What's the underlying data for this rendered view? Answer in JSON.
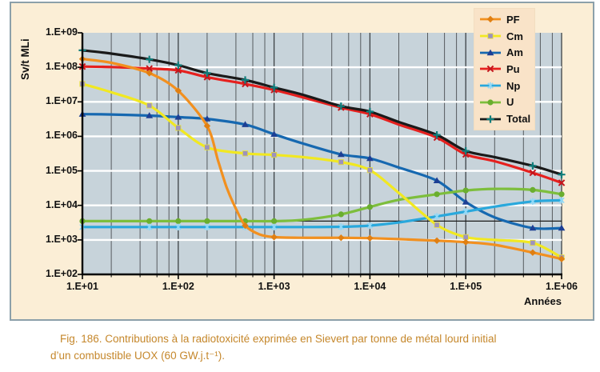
{
  "figure": {
    "caption_line1": "Fig. 186. Contributions à la radiotoxicité exprimée en Sievert par tonne de métal lourd initial",
    "caption_line2": "d’un combustible UOX (60 GW.j.t⁻¹).",
    "caption_color": "#C5872B"
  },
  "theme": {
    "page_bg": "#FFFFFF",
    "figure_bg": "#FBEED6",
    "figure_border": "#8CA0AA",
    "plot_bg": "#C7D3DA",
    "legend_bg": "#F9E3C8",
    "grid_major_v": "#3C4145",
    "grid_minor_v": "#565B5E",
    "grid_white_h": "#FFFFFF",
    "axis_color": "#000000"
  },
  "chart_data": {
    "type": "line",
    "x_axis": {
      "label": "Années",
      "scale": "log",
      "min": 10,
      "max": 1000000,
      "tick_values": [
        10,
        100,
        1000,
        10000,
        100000,
        1000000
      ],
      "tick_labels": [
        "1.E+01",
        "1.E+02",
        "1.E+03",
        "1.E+04",
        "1.E+05",
        "1.E+06"
      ],
      "minor_multiples": [
        2,
        4,
        6,
        8
      ]
    },
    "y_axis": {
      "label": "Sv/t MLi",
      "scale": "log",
      "min": 100,
      "max": 1000000000,
      "tick_values": [
        1000000000,
        100000000,
        10000000,
        1000000,
        100000,
        10000,
        1000,
        100
      ],
      "tick_labels": [
        "1.E+09",
        "1.E+08",
        "1.E+07",
        "1.E+06",
        "1.E+05",
        "1.E+04",
        "1.E+03",
        "1.E+02"
      ]
    },
    "reference_line": {
      "value": 3500,
      "color": "#1A1A1A"
    },
    "legend": {
      "position": "top-right",
      "entries": [
        "PF",
        "Cm",
        "Am",
        "Pu",
        "Np",
        "U",
        "Total"
      ]
    },
    "marker_x": [
      10,
      50,
      100,
      200,
      500,
      1000,
      5000,
      10000,
      50000,
      100000,
      500000,
      1000000
    ],
    "series": [
      {
        "name": "PF",
        "color": "#F2901F",
        "marker": "diamond",
        "marker_color": "#E07F12",
        "points": [
          [
            10,
            175000000.0
          ],
          [
            20,
            135000000.0
          ],
          [
            50,
            68000000.0
          ],
          [
            100,
            21000000.0
          ],
          [
            200,
            2000000.0
          ],
          [
            260,
            200000.0
          ],
          [
            320,
            33000.0
          ],
          [
            400,
            8000.0
          ],
          [
            500,
            2600.0
          ],
          [
            700,
            1450.0
          ],
          [
            1000,
            1200.0
          ],
          [
            2000,
            1150.0
          ],
          [
            5000,
            1150.0
          ],
          [
            10000,
            1120.0
          ],
          [
            20000,
            1050.0
          ],
          [
            50000,
            950.0
          ],
          [
            100000,
            860.0
          ],
          [
            200000,
            720.0
          ],
          [
            500000,
            430.0
          ],
          [
            1000000,
            280.0
          ]
        ]
      },
      {
        "name": "Cm",
        "color": "#F1E821",
        "marker": "square",
        "marker_color": "#9C92BE",
        "points": [
          [
            10,
            33000000.0
          ],
          [
            20,
            19000000.0
          ],
          [
            50,
            7800000.0
          ],
          [
            100,
            1750000.0
          ],
          [
            200,
            480000.0
          ],
          [
            500,
            320000.0
          ],
          [
            1000,
            290000.0
          ],
          [
            2000,
            250000.0
          ],
          [
            5000,
            180000.0
          ],
          [
            10000,
            105000.0
          ],
          [
            20000,
            23000.0
          ],
          [
            50000,
            2700.0
          ],
          [
            100000,
            1200.0
          ],
          [
            200000,
            1000.0
          ],
          [
            500000,
            820.0
          ],
          [
            1000000,
            310.0
          ]
        ]
      },
      {
        "name": "Am",
        "color": "#1668B0",
        "marker": "triangle",
        "marker_color": "#1D3F94",
        "points": [
          [
            10,
            4400000.0
          ],
          [
            20,
            4300000.0
          ],
          [
            50,
            4000000.0
          ],
          [
            100,
            3600000.0
          ],
          [
            200,
            3200000.0
          ],
          [
            500,
            2200000.0
          ],
          [
            1000,
            1150000.0
          ],
          [
            2000,
            620000.0
          ],
          [
            5000,
            300000.0
          ],
          [
            10000,
            230000.0
          ],
          [
            20000,
            125000.0
          ],
          [
            50000,
            52000.0
          ],
          [
            100000,
            12500.0
          ],
          [
            200000,
            4500.0
          ],
          [
            500000,
            2200.0
          ],
          [
            1000000,
            2200.0
          ]
        ]
      },
      {
        "name": "Pu",
        "color": "#E6201E",
        "marker": "cross",
        "marker_color": "#C4151C",
        "points": [
          [
            10,
            105000000.0
          ],
          [
            20,
            102000000.0
          ],
          [
            50,
            92000000.0
          ],
          [
            100,
            82000000.0
          ],
          [
            200,
            52000000.0
          ],
          [
            500,
            33000000.0
          ],
          [
            1000,
            22000000.0
          ],
          [
            2000,
            13500000.0
          ],
          [
            5000,
            6800000.0
          ],
          [
            10000,
            4400000.0
          ],
          [
            20000,
            2200000.0
          ],
          [
            50000,
            920000.0
          ],
          [
            100000,
            300000.0
          ],
          [
            200000,
            190000.0
          ],
          [
            500000,
            88000.0
          ],
          [
            1000000,
            45000.0
          ]
        ]
      },
      {
        "name": "Np",
        "color": "#29A8DC",
        "marker": "star",
        "marker_color": "#8FD8F7",
        "points": [
          [
            10,
            2350.0
          ],
          [
            20,
            2350.0
          ],
          [
            50,
            2350.0
          ],
          [
            100,
            2350.0
          ],
          [
            200,
            2350.0
          ],
          [
            500,
            2350.0
          ],
          [
            1000,
            2350.0
          ],
          [
            2000,
            2350.0
          ],
          [
            5000,
            2400.0
          ],
          [
            10000,
            2600.0
          ],
          [
            20000,
            3200.0
          ],
          [
            50000,
            4800.0
          ],
          [
            100000,
            6600.0
          ],
          [
            200000,
            9200.0
          ],
          [
            500000,
            13000.0
          ],
          [
            1000000,
            14000.0
          ]
        ]
      },
      {
        "name": "U",
        "color": "#7DBE3C",
        "marker": "circle",
        "marker_color": "#6AAE2F",
        "points": [
          [
            10,
            3500.0
          ],
          [
            20,
            3500.0
          ],
          [
            50,
            3500.0
          ],
          [
            100,
            3500.0
          ],
          [
            200,
            3500.0
          ],
          [
            500,
            3500.0
          ],
          [
            1000,
            3500.0
          ],
          [
            2000,
            3800.0
          ],
          [
            5000,
            5500.0
          ],
          [
            10000,
            9000.0
          ],
          [
            20000,
            14500.0
          ],
          [
            50000,
            21000.0
          ],
          [
            100000,
            27000.0
          ],
          [
            200000,
            30000.0
          ],
          [
            500000,
            28000.0
          ],
          [
            1000000,
            21000.0
          ]
        ]
      },
      {
        "name": "Total",
        "color": "#1A1A1A",
        "marker": "plus",
        "marker_color": "#0F7E7C",
        "points": [
          [
            10,
            310000000.0
          ],
          [
            20,
            250000000.0
          ],
          [
            50,
            170000000.0
          ],
          [
            100,
            115000000.0
          ],
          [
            200,
            68000000.0
          ],
          [
            500,
            43000000.0
          ],
          [
            1000,
            26000000.0
          ],
          [
            2000,
            16000000.0
          ],
          [
            5000,
            7500000.0
          ],
          [
            10000,
            5200000.0
          ],
          [
            20000,
            2600000.0
          ],
          [
            50000,
            1100000.0
          ],
          [
            100000,
            380000.0
          ],
          [
            200000,
            250000.0
          ],
          [
            500000,
            140000.0
          ],
          [
            1000000,
            78000.0
          ]
        ]
      }
    ]
  }
}
